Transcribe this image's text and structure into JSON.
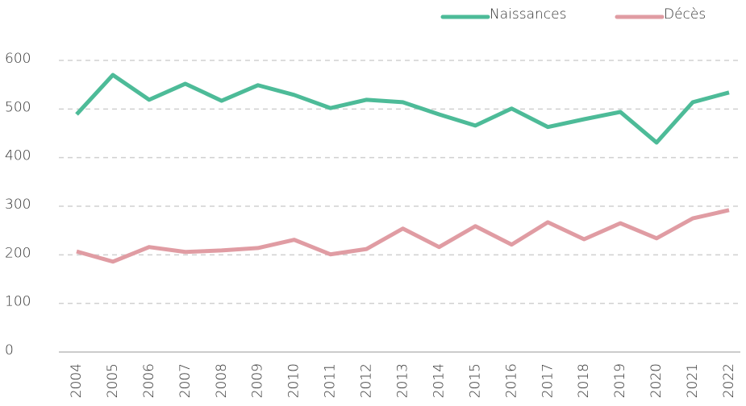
{
  "chart_data": {
    "type": "line",
    "categories": [
      "2004",
      "2005",
      "2006",
      "2007",
      "2008",
      "2009",
      "2010",
      "2011",
      "2012",
      "2013",
      "2014",
      "2015",
      "2016",
      "2017",
      "2018",
      "2019",
      "2020",
      "2021",
      "2022"
    ],
    "series": [
      {
        "name": "Naissances",
        "color": "#4dbb98",
        "values": [
          489,
          570,
          519,
          552,
          517,
          549,
          529,
          502,
          519,
          514,
          489,
          466,
          501,
          463,
          479,
          494,
          431,
          514,
          534
        ]
      },
      {
        "name": "Décès",
        "color": "#e09ca3",
        "values": [
          207,
          186,
          216,
          206,
          209,
          214,
          231,
          201,
          212,
          254,
          216,
          259,
          221,
          267,
          232,
          265,
          234,
          275,
          292
        ]
      }
    ],
    "ylim": [
      0,
      600
    ],
    "yticks": [
      0,
      100,
      200,
      300,
      400,
      500,
      600
    ],
    "grid": true,
    "legend": "top-right"
  }
}
